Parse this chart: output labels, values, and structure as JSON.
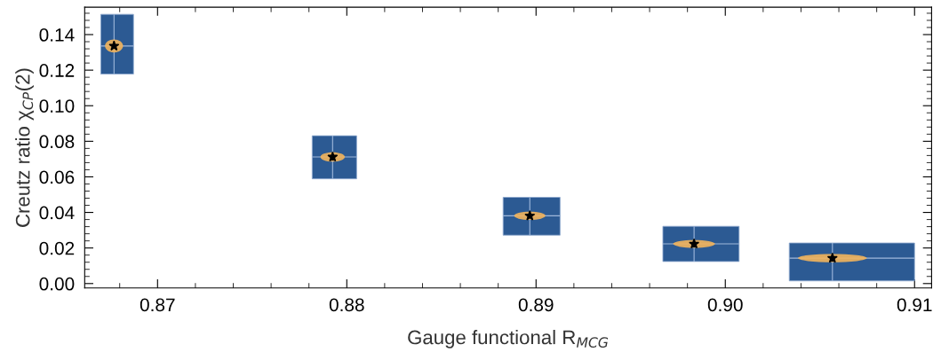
{
  "chart_data": {
    "type": "scatter",
    "xlabel": "Gauge functional R$_{MCG}$",
    "ylabel": "Creutz ratio χ$_{CP}$(2)",
    "x": [
      0.8677,
      0.87925,
      0.88967,
      0.89835,
      0.90566
    ],
    "series": [
      {
        "color": "#000000",
        "values": [
          0.1336,
          0.0712,
          0.0381,
          0.0223,
          0.0143
        ],
        "xerrors": [
          [
            0.867,
            0.86873
          ],
          [
            0.87817,
            0.88052
          ],
          [
            0.88826,
            0.89127
          ],
          [
            0.8967,
            0.90073
          ],
          [
            0.90338,
            0.91
          ]
        ],
        "errors": [
          [
            0.1178,
            0.1514
          ],
          [
            0.0589,
            0.0831
          ],
          [
            0.0272,
            0.0485
          ],
          [
            0.0124,
            0.0322
          ],
          [
            0.0015,
            0.0228
          ]
        ]
      }
    ],
    "marker": "star",
    "grid": false,
    "legend": false,
    "xlim": [
      0.86615,
      0.9109
    ],
    "ylim": [
      -0.0025,
      0.1554
    ],
    "xticks": [
      0.87,
      0.88,
      0.89,
      {
        "value": 0.9,
        "label": "0.90"
      },
      0.91
    ],
    "yticks": [
      {
        "value": 0,
        "label": "0.00"
      },
      0.02,
      0.04,
      0.06,
      0.08,
      {
        "value": 0.1,
        "label": "0.10"
      },
      0.12,
      0.14
    ]
  }
}
